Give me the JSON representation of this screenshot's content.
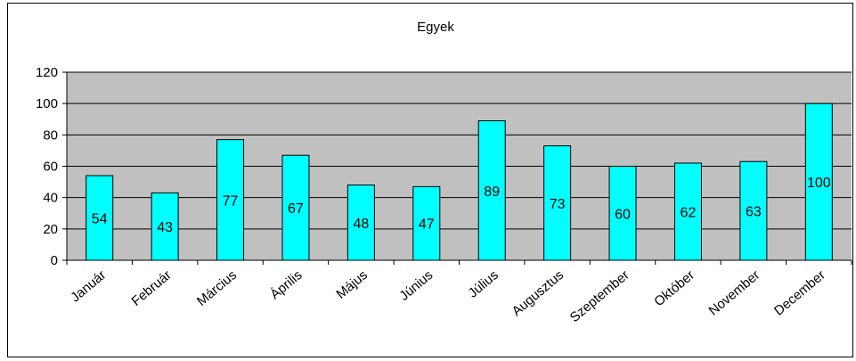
{
  "chart_data": {
    "type": "bar",
    "title": "Egyek",
    "xlabel": "",
    "ylabel": "",
    "categories": [
      "Január",
      "Február",
      "Március",
      "Április",
      "Május",
      "Június",
      "Július",
      "Augusztus",
      "Szeptember",
      "Október",
      "November",
      "December"
    ],
    "series": [
      {
        "values": [
          54,
          43,
          77,
          67,
          48,
          47,
          89,
          73,
          60,
          62,
          63,
          100
        ]
      }
    ],
    "ylim": [
      0,
      120
    ],
    "yticks": [
      0,
      20,
      40,
      60,
      80,
      100,
      120
    ],
    "grid": true,
    "legend": "none",
    "data_labels": true,
    "colors": {
      "bar_fill": "#00FFFF",
      "bar_stroke": "#000000",
      "plot_background": "#C0C0C0",
      "gridline": "#000000"
    }
  }
}
